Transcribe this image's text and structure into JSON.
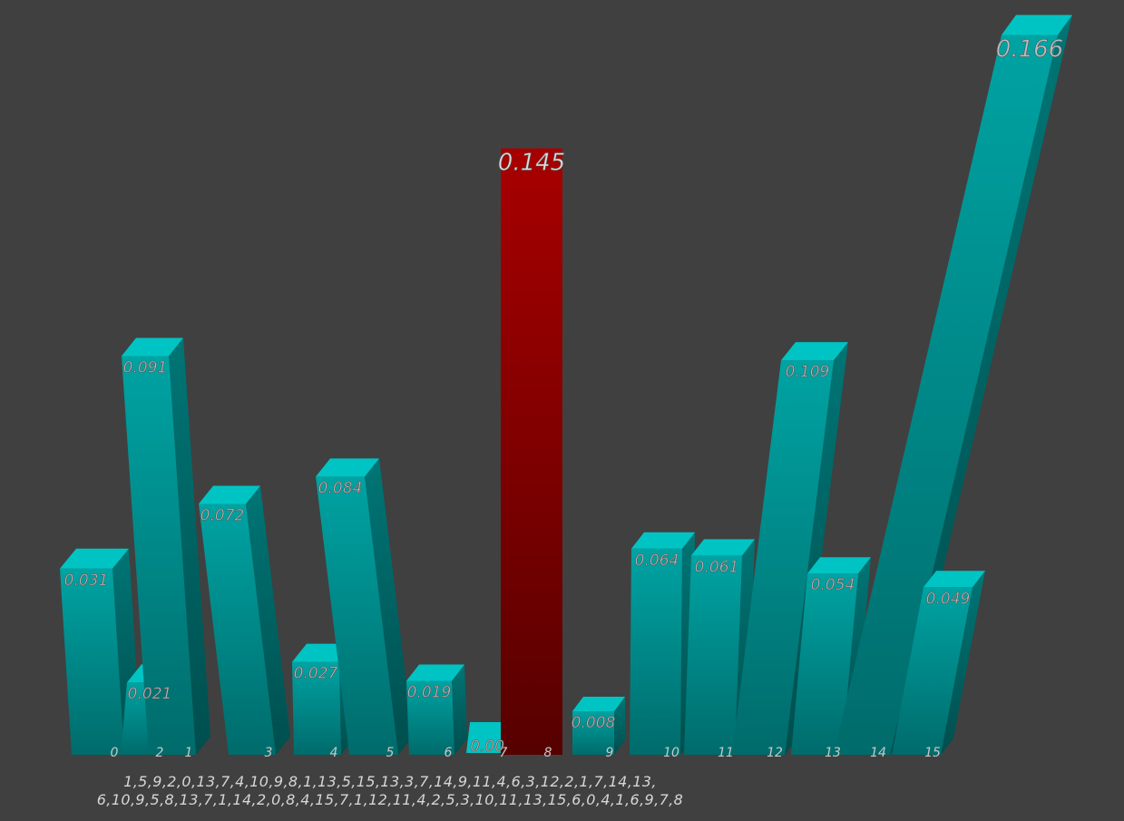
{
  "chart_data": {
    "type": "bar",
    "title": "",
    "xlabel": "",
    "ylabel": "",
    "categories": [
      "0",
      "1",
      "2",
      "3",
      "4",
      "5",
      "6",
      "7",
      "8",
      "9",
      "10",
      "11",
      "12",
      "13",
      "14",
      "15"
    ],
    "values": [
      0.031,
      0.091,
      0.021,
      0.072,
      0.027,
      0.084,
      0.019,
      0.0,
      0.145,
      0.008,
      0.064,
      0.061,
      0.109,
      0.054,
      0.166,
      0.049
    ],
    "value_labels": [
      "0.031",
      "0.091",
      "0.021",
      "0.072",
      "0.027",
      "0.084",
      "0.019",
      "0.00",
      "0.145",
      "0.008",
      "0.064",
      "0.061",
      "0.109",
      "0.054",
      "0.166",
      "0.049"
    ],
    "highlight_index": 8,
    "colors": {
      "bar_front": "#009a9a",
      "bar_top": "#00c4c4",
      "bar_side": "#006363",
      "highlight_top": "#a80000",
      "highlight_bottom": "#5a0000",
      "background": "#404040",
      "label_text": "#bdbdbd"
    },
    "grid": false
  },
  "caption": {
    "line1": "1,5,9,2,0,13,7,4,10,9,8,1,13,5,15,13,3,7,14,9,11,4,6,3,12,2,1,7,14,13,",
    "line2": "6,10,9,5,8,13,7,1,14,2,0,8,4,15,7,1,12,11,4,2,5,3,10,11,13,15,6,0,4,1,6,9,7,8"
  }
}
